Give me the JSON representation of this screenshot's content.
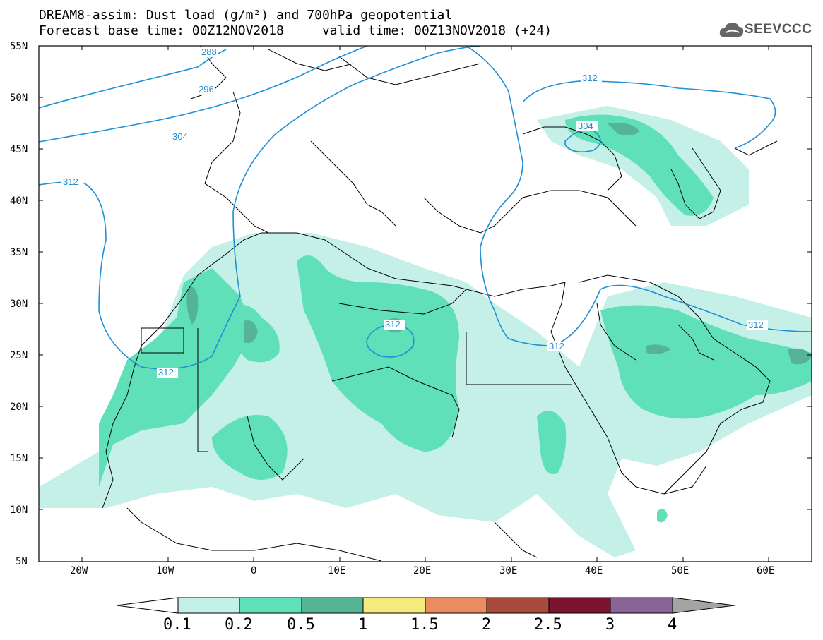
{
  "header": {
    "title_line1": "DREAM8-assim: Dust load (g/m²) and 700hPa geopotential",
    "title_line2": "Forecast base time: 00Z12NOV2018     valid time: 00Z13NOV2018 (+24)"
  },
  "logo": {
    "text": "SEEVCCC",
    "icon": "cloud-logo-icon"
  },
  "map": {
    "lon_range": [
      -25,
      65
    ],
    "lat_range": [
      5,
      55
    ],
    "lat_ticks": [
      "55N",
      "50N",
      "45N",
      "40N",
      "35N",
      "30N",
      "25N",
      "20N",
      "15N",
      "10N",
      "5N"
    ],
    "lon_ticks": [
      "20W",
      "10W",
      "0",
      "10E",
      "20E",
      "30E",
      "40E",
      "50E",
      "60E"
    ]
  },
  "contours": {
    "color": "#1f8fd6",
    "labels": [
      "288",
      "296",
      "304",
      "312",
      "312",
      "312",
      "312",
      "312",
      "312",
      "304"
    ]
  },
  "colorbar": {
    "levels": [
      "0.1",
      "0.2",
      "0.5",
      "1",
      "1.5",
      "2",
      "2.5",
      "3",
      "4"
    ],
    "colors": [
      "#c4f0e8",
      "#5fe0b8",
      "#56b496",
      "#f4ea7e",
      "#ea8c60",
      "#a84a3c",
      "#7a1430",
      "#8a6496",
      "#a4a4a4"
    ]
  },
  "dust_colors": {
    "low": "#c4f0e8",
    "mid": "#5fe0b8",
    "high": "#56b496"
  }
}
